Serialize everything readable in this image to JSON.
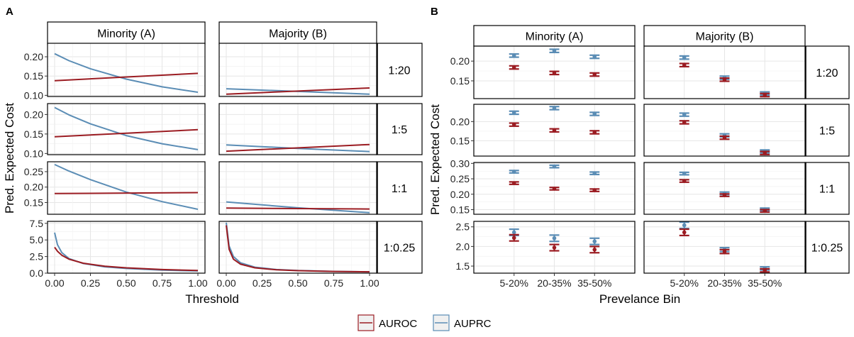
{
  "figure": {
    "panel_A_label": "A",
    "panel_B_label": "B",
    "legend": [
      {
        "label": "AUROC",
        "color": "#9b1c22"
      },
      {
        "label": "AUPRC",
        "color": "#5b8db5"
      }
    ]
  },
  "chart_data": [
    {
      "type": "line",
      "panel": "A",
      "xlabel": "Threshold",
      "ylabel": "Pred. Expected Cost",
      "col_strips": [
        "Minority (A)",
        "Majority (B)"
      ],
      "row_strips": [
        "1:20",
        "1:5",
        "1:1",
        "1:0.25"
      ],
      "xlim": [
        0,
        1
      ],
      "xticks": [
        "0.00",
        "0.25",
        "0.50",
        "0.75",
        "1.00"
      ],
      "rows": [
        {
          "ylim": [
            0.097,
            0.235
          ],
          "yticks": [
            "0.10",
            "0.15",
            "0.20"
          ],
          "minority": {
            "AUROC": [
              [
                0,
                0.138
              ],
              [
                1,
                0.157
              ]
            ],
            "AUPRC": [
              [
                0,
                0.208
              ],
              [
                0.1,
                0.19
              ],
              [
                0.25,
                0.169
              ],
              [
                0.5,
                0.142
              ],
              [
                0.75,
                0.122
              ],
              [
                1,
                0.108
              ]
            ]
          },
          "majority": {
            "AUROC": [
              [
                0,
                0.103
              ],
              [
                1,
                0.119
              ]
            ],
            "AUPRC": [
              [
                0,
                0.117
              ],
              [
                0.5,
                0.11
              ],
              [
                1,
                0.103
              ]
            ]
          }
        },
        {
          "ylim": [
            0.097,
            0.228
          ],
          "yticks": [
            "0.10",
            "0.15",
            "0.20"
          ],
          "minority": {
            "AUROC": [
              [
                0,
                0.143
              ],
              [
                1,
                0.161
              ]
            ],
            "AUPRC": [
              [
                0,
                0.218
              ],
              [
                0.1,
                0.199
              ],
              [
                0.25,
                0.176
              ],
              [
                0.5,
                0.146
              ],
              [
                0.75,
                0.125
              ],
              [
                1,
                0.11
              ]
            ]
          },
          "majority": {
            "AUROC": [
              [
                0,
                0.106
              ],
              [
                1,
                0.123
              ]
            ],
            "AUPRC": [
              [
                0,
                0.122
              ],
              [
                0.5,
                0.113
              ],
              [
                1,
                0.105
              ]
            ]
          }
        },
        {
          "ylim": [
            0.112,
            0.282
          ],
          "yticks": [
            "0.15",
            "0.20",
            "0.25"
          ],
          "minority": {
            "AUROC": [
              [
                0,
                0.179
              ],
              [
                1,
                0.182
              ]
            ],
            "AUPRC": [
              [
                0,
                0.273
              ],
              [
                0.1,
                0.252
              ],
              [
                0.25,
                0.224
              ],
              [
                0.5,
                0.184
              ],
              [
                0.75,
                0.153
              ],
              [
                1,
                0.128
              ]
            ]
          },
          "majority": {
            "AUROC": [
              [
                0,
                0.132
              ],
              [
                1,
                0.129
              ]
            ],
            "AUPRC": [
              [
                0,
                0.152
              ],
              [
                0.5,
                0.133
              ],
              [
                1,
                0.117
              ]
            ]
          }
        },
        {
          "ylim": [
            0,
            7.8
          ],
          "yticks": [
            "0.0",
            "2.5",
            "5.0",
            "7.5"
          ],
          "minority": {
            "AUROC": [
              [
                0,
                3.9
              ],
              [
                0.02,
                3.3
              ],
              [
                0.05,
                2.7
              ],
              [
                0.1,
                2.1
              ],
              [
                0.2,
                1.5
              ],
              [
                0.35,
                1.05
              ],
              [
                0.5,
                0.8
              ],
              [
                0.75,
                0.55
              ],
              [
                1,
                0.4
              ]
            ],
            "AUPRC": [
              [
                0,
                6.1
              ],
              [
                0.02,
                4.3
              ],
              [
                0.05,
                3.1
              ],
              [
                0.1,
                2.2
              ],
              [
                0.2,
                1.45
              ],
              [
                0.35,
                0.95
              ],
              [
                0.5,
                0.7
              ],
              [
                0.75,
                0.45
              ],
              [
                1,
                0.33
              ]
            ]
          },
          "majority": {
            "AUROC": [
              [
                0,
                7.2
              ],
              [
                0.02,
                3.6
              ],
              [
                0.05,
                2.1
              ],
              [
                0.1,
                1.35
              ],
              [
                0.2,
                0.8
              ],
              [
                0.35,
                0.5
              ],
              [
                0.5,
                0.37
              ],
              [
                0.75,
                0.26
              ],
              [
                1,
                0.2
              ]
            ],
            "AUPRC": [
              [
                0,
                7.6
              ],
              [
                0.02,
                4.1
              ],
              [
                0.05,
                2.5
              ],
              [
                0.1,
                1.55
              ],
              [
                0.2,
                0.9
              ],
              [
                0.35,
                0.55
              ],
              [
                0.5,
                0.4
              ],
              [
                0.75,
                0.27
              ],
              [
                1,
                0.2
              ]
            ]
          }
        }
      ]
    },
    {
      "type": "scatter",
      "panel": "B",
      "xlabel": "Prevelance Bin",
      "ylabel": "Pred. Expected Cost",
      "col_strips": [
        "Minority (A)",
        "Majority (B)"
      ],
      "row_strips": [
        "1:20",
        "1:5",
        "1:1",
        "1:0.25"
      ],
      "categories": [
        "5-20%",
        "20-35%",
        "35-50%"
      ],
      "rows": [
        {
          "ylim": [
            0.105,
            0.238
          ],
          "yticks": [
            "0.15",
            "0.20"
          ],
          "minority": {
            "AUROC": [
              [
                0.184,
                0.004
              ],
              [
                0.17,
                0.004
              ],
              [
                0.166,
                0.004
              ]
            ],
            "AUPRC": [
              [
                0.214,
                0.004
              ],
              [
                0.226,
                0.004
              ],
              [
                0.211,
                0.004
              ]
            ]
          },
          "majority": {
            "AUROC": [
              [
                0.19,
                0.004
              ],
              [
                0.153,
                0.004
              ],
              [
                0.114,
                0.004
              ]
            ],
            "AUPRC": [
              [
                0.209,
                0.004
              ],
              [
                0.158,
                0.004
              ],
              [
                0.118,
                0.004
              ]
            ]
          }
        },
        {
          "ylim": [
            0.11,
            0.245
          ],
          "yticks": [
            "0.15",
            "0.20"
          ],
          "minority": {
            "AUROC": [
              [
                0.192,
                0.004
              ],
              [
                0.177,
                0.004
              ],
              [
                0.172,
                0.004
              ]
            ],
            "AUPRC": [
              [
                0.223,
                0.004
              ],
              [
                0.235,
                0.004
              ],
              [
                0.22,
                0.004
              ]
            ]
          },
          "majority": {
            "AUROC": [
              [
                0.198,
                0.004
              ],
              [
                0.158,
                0.004
              ],
              [
                0.118,
                0.004
              ]
            ],
            "AUPRC": [
              [
                0.218,
                0.004
              ],
              [
                0.164,
                0.004
              ],
              [
                0.122,
                0.004
              ]
            ]
          }
        },
        {
          "ylim": [
            0.135,
            0.303
          ],
          "yticks": [
            "0.15",
            "0.20",
            "0.25",
            "0.30"
          ],
          "minority": {
            "AUROC": [
              [
                0.236,
                0.004
              ],
              [
                0.218,
                0.004
              ],
              [
                0.213,
                0.004
              ]
            ],
            "AUPRC": [
              [
                0.273,
                0.004
              ],
              [
                0.29,
                0.004
              ],
              [
                0.268,
                0.004
              ]
            ]
          },
          "majority": {
            "AUROC": [
              [
                0.243,
                0.004
              ],
              [
                0.197,
                0.004
              ],
              [
                0.146,
                0.004
              ]
            ],
            "AUPRC": [
              [
                0.267,
                0.004
              ],
              [
                0.203,
                0.004
              ],
              [
                0.151,
                0.004
              ]
            ]
          }
        },
        {
          "ylim": [
            1.32,
            2.64
          ],
          "yticks": [
            "1.5",
            "2.0",
            "2.5"
          ],
          "minority": {
            "AUROC": [
              [
                2.22,
                0.08
              ],
              [
                1.97,
                0.08
              ],
              [
                1.92,
                0.08
              ]
            ],
            "AUPRC": [
              [
                2.36,
                0.08
              ],
              [
                2.21,
                0.08
              ],
              [
                2.13,
                0.08
              ]
            ]
          },
          "majority": {
            "AUROC": [
              [
                2.36,
                0.08
              ],
              [
                1.87,
                0.05
              ],
              [
                1.39,
                0.04
              ]
            ],
            "AUPRC": [
              [
                2.54,
                0.08
              ],
              [
                1.92,
                0.05
              ],
              [
                1.44,
                0.04
              ]
            ]
          }
        }
      ]
    }
  ]
}
